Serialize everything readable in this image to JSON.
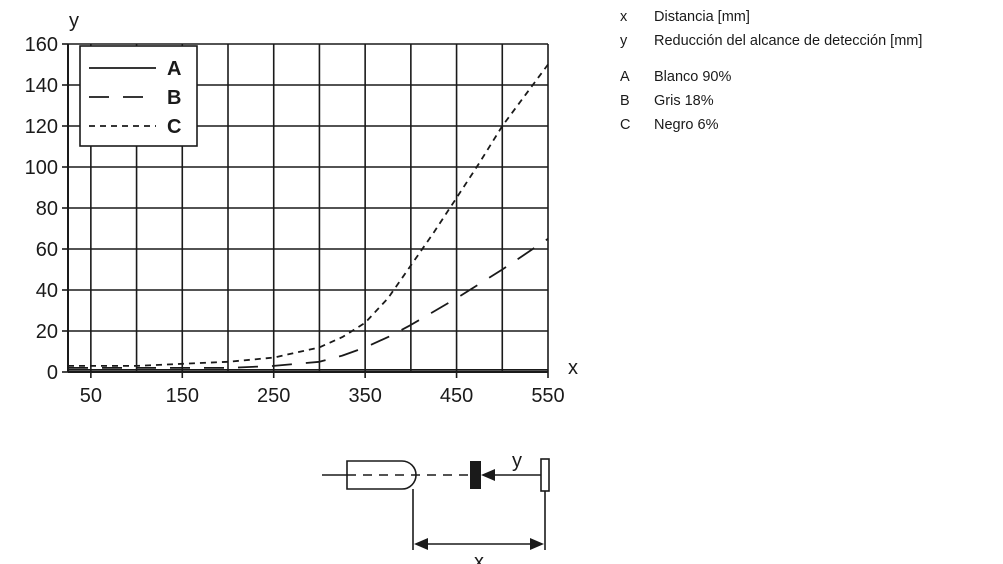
{
  "chart_data": {
    "type": "line",
    "xlabel": "x",
    "ylabel": "y",
    "xlim": [
      25,
      550
    ],
    "ylim": [
      0,
      160
    ],
    "x_ticks": [
      50,
      150,
      250,
      350,
      450,
      550
    ],
    "y_ticks": [
      0,
      20,
      40,
      60,
      80,
      100,
      120,
      140,
      160
    ],
    "grid": true,
    "legend_position": "top-left",
    "series": [
      {
        "name": "A",
        "style": "solid",
        "x": [
          25,
          100,
          200,
          300,
          400,
          500,
          550
        ],
        "y": [
          1,
          1,
          1,
          1,
          1,
          1,
          1
        ]
      },
      {
        "name": "B",
        "style": "long-dash",
        "x": [
          25,
          100,
          150,
          200,
          250,
          300,
          325,
          350,
          375,
          400,
          450,
          500,
          550
        ],
        "y": [
          2,
          2,
          2,
          2,
          3,
          5,
          8,
          12,
          17,
          23,
          36,
          50,
          65
        ]
      },
      {
        "name": "C",
        "style": "short-dash",
        "x": [
          25,
          100,
          150,
          200,
          250,
          300,
          325,
          350,
          375,
          400,
          425,
          450,
          475,
          500,
          525,
          550
        ],
        "y": [
          3,
          3,
          4,
          5,
          7,
          12,
          17,
          24,
          36,
          52,
          68,
          85,
          102,
          120,
          135,
          150
        ]
      }
    ]
  },
  "key": {
    "items": [
      {
        "symbol": "x",
        "text": "Distancia [mm]"
      },
      {
        "symbol": "y",
        "text": "Reducción del alcance de detección [mm]"
      },
      {
        "symbol": "A",
        "text": "Blanco 90%"
      },
      {
        "symbol": "B",
        "text": "Gris 18%"
      },
      {
        "symbol": "C",
        "text": "Negro 6%"
      }
    ]
  },
  "diagram": {
    "y_label": "y",
    "x_label": "x"
  },
  "colors": {
    "ink": "#1a1a1a",
    "background": "#ffffff"
  }
}
